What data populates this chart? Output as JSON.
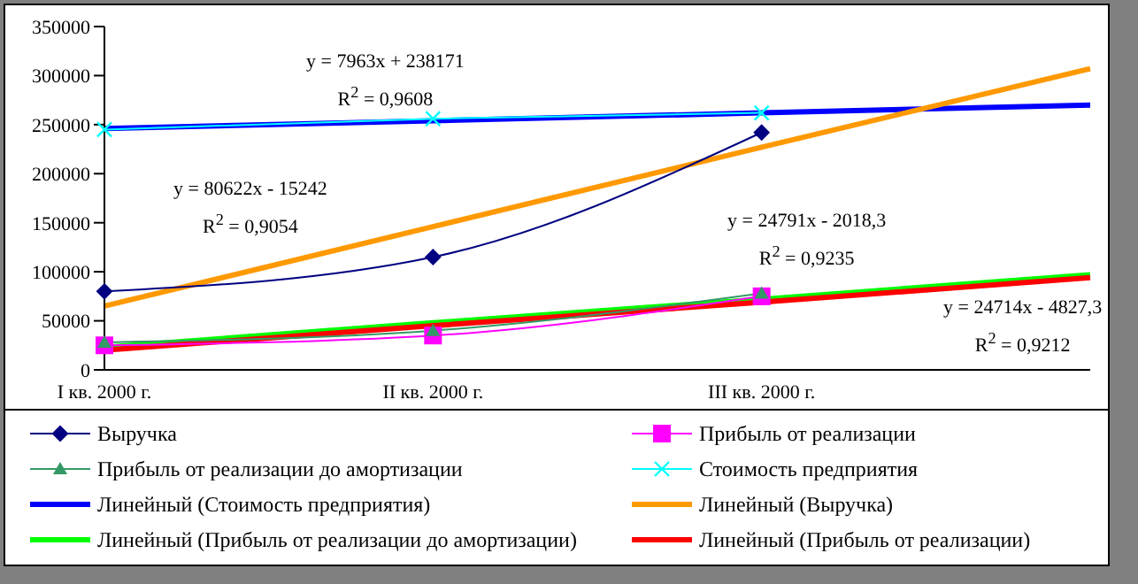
{
  "chart_data": {
    "type": "line",
    "categories": [
      "I кв. 2000 г.",
      "II кв. 2000 г.",
      "III кв. 2000 г.",
      null
    ],
    "ylim": [
      0,
      350000
    ],
    "yticks": [
      0,
      50000,
      100000,
      150000,
      200000,
      250000,
      300000,
      350000
    ],
    "grid": false,
    "legend": "bottom",
    "series": [
      {
        "name": "Выручка",
        "color": "#000080",
        "marker": "diamond",
        "values": [
          80000,
          115000,
          242000,
          null
        ]
      },
      {
        "name": "Прибыль от реализации",
        "color": "#ff00ff",
        "marker": "square",
        "values": [
          25000,
          35000,
          75000,
          null
        ]
      },
      {
        "name": "Прибыль от реализации до амортизации",
        "color": "#339966",
        "marker": "triangle",
        "values": [
          28000,
          40000,
          78000,
          null
        ]
      },
      {
        "name": "Стоимость предприятия",
        "color": "#00ffff",
        "marker": "cross",
        "values": [
          245000,
          256000,
          262000,
          null
        ]
      },
      {
        "name": "Линейный (Стоимость предприятия)",
        "color": "#0000ff",
        "values": [
          246000,
          254000,
          262000,
          270000
        ]
      },
      {
        "name": "Линейный (Выручка)",
        "color": "#ff9900",
        "values": [
          65000,
          146000,
          227000,
          307000
        ]
      },
      {
        "name": "Линейный (Прибыль от реализации до амортизации)",
        "color": "#00ff00",
        "values": [
          23000,
          48000,
          72000,
          97000
        ]
      },
      {
        "name": "Линейный (Прибыль от реализации)",
        "color": "#ff0000",
        "values": [
          20000,
          45000,
          69000,
          94000
        ]
      }
    ],
    "annotations": [
      "y = 7963x + 238171\nR$^{2}$ = 0,9608",
      "y = 80622x - 15242\nR$^{2}$ = 0,9054",
      "y = 24791x - 2018,3\nR$^{2}$ = 0,9235",
      "y = 24714x - 4827,3\nR$^{2}$ = 0,9212"
    ]
  }
}
